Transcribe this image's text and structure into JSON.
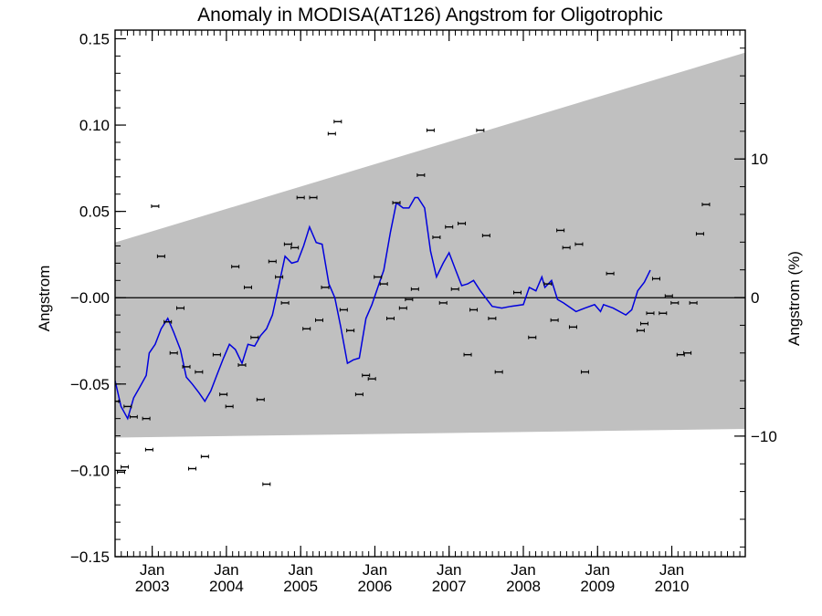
{
  "chart_data": {
    "type": "line",
    "title": "Anomaly in MODISA(AT126) Angstrom for Oligotrophic",
    "xlabel": "",
    "ylabel": "Angstrom",
    "y2label": "Angstrom (%)",
    "xlim": [
      2002.5,
      2010.99
    ],
    "ylim": [
      -0.15,
      0.155
    ],
    "y2lim": [
      -18.7,
      19.3
    ],
    "x_ticks": [
      {
        "month": "Jan",
        "year": "2003",
        "x": 2003.0
      },
      {
        "month": "Jan",
        "year": "2004",
        "x": 2004.0
      },
      {
        "month": "Jan",
        "year": "2005",
        "x": 2005.0
      },
      {
        "month": "Jan",
        "year": "2006",
        "x": 2006.0
      },
      {
        "month": "Jan",
        "year": "2007",
        "x": 2007.0
      },
      {
        "month": "Jan",
        "year": "2008",
        "x": 2008.0
      },
      {
        "month": "Jan",
        "year": "2009",
        "x": 2009.0
      },
      {
        "month": "Jan",
        "year": "2010",
        "x": 2010.0
      }
    ],
    "y_ticks": [
      {
        "label": "0.15",
        "y": 0.15
      },
      {
        "label": "0.10",
        "y": 0.1
      },
      {
        "label": "0.05",
        "y": 0.05
      },
      {
        "label": "−0.00",
        "y": 0.0
      },
      {
        "label": "−0.05",
        "y": -0.05
      },
      {
        "label": "−0.10",
        "y": -0.1
      },
      {
        "label": "−0.15",
        "y": -0.15
      }
    ],
    "y2_ticks": [
      {
        "label": "10",
        "y": 10
      },
      {
        "label": "0",
        "y": 0
      },
      {
        "label": "−10",
        "y": -10
      }
    ],
    "envelope": {
      "upper": [
        [
          2002.5,
          0.032
        ],
        [
          2010.99,
          0.142
        ]
      ],
      "lower": [
        [
          2002.5,
          -0.081
        ],
        [
          2010.99,
          -0.076
        ]
      ],
      "color": "#c0c0c0"
    },
    "zero_line": 0,
    "series": [
      {
        "kind": "scatter-errorbar",
        "color": "#000000",
        "points": [
          [
            2002.5,
            -0.06
          ],
          [
            2002.58,
            -0.101
          ],
          [
            2002.63,
            -0.098
          ],
          [
            2002.67,
            -0.063
          ],
          [
            2002.75,
            -0.069
          ],
          [
            2002.92,
            -0.07
          ],
          [
            2002.96,
            -0.088
          ],
          [
            2003.04,
            0.053
          ],
          [
            2003.12,
            0.024
          ],
          [
            2003.21,
            -0.014
          ],
          [
            2003.29,
            -0.032
          ],
          [
            2003.38,
            -0.006
          ],
          [
            2003.46,
            -0.04
          ],
          [
            2003.54,
            -0.099
          ],
          [
            2003.63,
            -0.043
          ],
          [
            2003.71,
            -0.092
          ],
          [
            2003.87,
            -0.033
          ],
          [
            2003.96,
            -0.056
          ],
          [
            2004.04,
            -0.063
          ],
          [
            2004.12,
            0.018
          ],
          [
            2004.21,
            -0.039
          ],
          [
            2004.29,
            0.006
          ],
          [
            2004.38,
            -0.023
          ],
          [
            2004.46,
            -0.059
          ],
          [
            2004.54,
            -0.108
          ],
          [
            2004.62,
            0.021
          ],
          [
            2004.71,
            0.012
          ],
          [
            2004.79,
            -0.003
          ],
          [
            2004.83,
            0.031
          ],
          [
            2004.92,
            0.029
          ],
          [
            2005.0,
            0.058
          ],
          [
            2005.08,
            -0.018
          ],
          [
            2005.17,
            0.058
          ],
          [
            2005.25,
            -0.013
          ],
          [
            2005.33,
            0.006
          ],
          [
            2005.42,
            0.095
          ],
          [
            2005.5,
            0.102
          ],
          [
            2005.58,
            -0.007
          ],
          [
            2005.67,
            -0.019
          ],
          [
            2005.79,
            -0.056
          ],
          [
            2005.88,
            -0.045
          ],
          [
            2005.96,
            -0.047
          ],
          [
            2006.04,
            0.012
          ],
          [
            2006.12,
            0.008
          ],
          [
            2006.21,
            -0.012
          ],
          [
            2006.29,
            0.055
          ],
          [
            2006.38,
            -0.006
          ],
          [
            2006.46,
            -0.001
          ],
          [
            2006.54,
            0.005
          ],
          [
            2006.62,
            0.071
          ],
          [
            2006.75,
            0.097
          ],
          [
            2006.83,
            0.035
          ],
          [
            2006.92,
            -0.003
          ],
          [
            2007.0,
            0.041
          ],
          [
            2007.08,
            0.005
          ],
          [
            2007.17,
            0.043
          ],
          [
            2007.25,
            -0.033
          ],
          [
            2007.33,
            -0.007
          ],
          [
            2007.42,
            0.097
          ],
          [
            2007.5,
            0.036
          ],
          [
            2007.58,
            -0.012
          ],
          [
            2007.67,
            -0.043
          ],
          [
            2007.92,
            0.003
          ],
          [
            2008.12,
            -0.023
          ],
          [
            2008.33,
            0.008
          ],
          [
            2008.42,
            -0.013
          ],
          [
            2008.5,
            0.039
          ],
          [
            2008.58,
            0.029
          ],
          [
            2008.67,
            -0.017
          ],
          [
            2008.75,
            0.031
          ],
          [
            2008.83,
            -0.043
          ],
          [
            2009.17,
            0.014
          ],
          [
            2009.58,
            -0.019
          ],
          [
            2009.63,
            -0.015
          ],
          [
            2009.71,
            -0.009
          ],
          [
            2009.79,
            0.011
          ],
          [
            2009.88,
            -0.009
          ],
          [
            2009.96,
            0.001
          ],
          [
            2010.04,
            -0.003
          ],
          [
            2010.12,
            -0.033
          ],
          [
            2010.21,
            -0.032
          ],
          [
            2010.29,
            -0.003
          ],
          [
            2010.38,
            0.037
          ],
          [
            2010.46,
            0.054
          ]
        ]
      },
      {
        "kind": "line",
        "color": "#0000dd",
        "points": [
          [
            2002.5,
            -0.048
          ],
          [
            2002.58,
            -0.063
          ],
          [
            2002.67,
            -0.07
          ],
          [
            2002.75,
            -0.058
          ],
          [
            2002.83,
            -0.052
          ],
          [
            2002.92,
            -0.045
          ],
          [
            2002.96,
            -0.032
          ],
          [
            2003.04,
            -0.027
          ],
          [
            2003.12,
            -0.018
          ],
          [
            2003.21,
            -0.012
          ],
          [
            2003.29,
            -0.02
          ],
          [
            2003.38,
            -0.03
          ],
          [
            2003.46,
            -0.046
          ],
          [
            2003.54,
            -0.05
          ],
          [
            2003.63,
            -0.055
          ],
          [
            2003.71,
            -0.06
          ],
          [
            2003.79,
            -0.054
          ],
          [
            2003.87,
            -0.045
          ],
          [
            2003.96,
            -0.035
          ],
          [
            2004.04,
            -0.027
          ],
          [
            2004.12,
            -0.03
          ],
          [
            2004.21,
            -0.038
          ],
          [
            2004.29,
            -0.027
          ],
          [
            2004.38,
            -0.028
          ],
          [
            2004.46,
            -0.022
          ],
          [
            2004.54,
            -0.018
          ],
          [
            2004.62,
            -0.01
          ],
          [
            2004.71,
            0.008
          ],
          [
            2004.79,
            0.024
          ],
          [
            2004.88,
            0.02
          ],
          [
            2004.96,
            0.021
          ],
          [
            2005.04,
            0.03
          ],
          [
            2005.12,
            0.041
          ],
          [
            2005.21,
            0.032
          ],
          [
            2005.29,
            0.031
          ],
          [
            2005.38,
            0.008
          ],
          [
            2005.46,
            0.0
          ],
          [
            2005.54,
            -0.017
          ],
          [
            2005.63,
            -0.038
          ],
          [
            2005.71,
            -0.036
          ],
          [
            2005.79,
            -0.035
          ],
          [
            2005.88,
            -0.012
          ],
          [
            2005.96,
            -0.004
          ],
          [
            2006.04,
            0.006
          ],
          [
            2006.12,
            0.016
          ],
          [
            2006.21,
            0.038
          ],
          [
            2006.29,
            0.055
          ],
          [
            2006.38,
            0.052
          ],
          [
            2006.46,
            0.052
          ],
          [
            2006.54,
            0.058
          ],
          [
            2006.58,
            0.058
          ],
          [
            2006.67,
            0.052
          ],
          [
            2006.75,
            0.027
          ],
          [
            2006.83,
            0.012
          ],
          [
            2006.92,
            0.02
          ],
          [
            2007.0,
            0.026
          ],
          [
            2007.08,
            0.017
          ],
          [
            2007.17,
            0.007
          ],
          [
            2007.25,
            0.008
          ],
          [
            2007.33,
            0.01
          ],
          [
            2007.42,
            0.004
          ],
          [
            2007.58,
            -0.005
          ],
          [
            2007.71,
            -0.006
          ],
          [
            2007.83,
            -0.005
          ],
          [
            2008.0,
            -0.004
          ],
          [
            2008.08,
            0.006
          ],
          [
            2008.17,
            0.004
          ],
          [
            2008.25,
            0.012
          ],
          [
            2008.29,
            0.006
          ],
          [
            2008.38,
            0.01
          ],
          [
            2008.46,
            -0.001
          ],
          [
            2008.54,
            -0.003
          ],
          [
            2008.71,
            -0.008
          ],
          [
            2008.83,
            -0.006
          ],
          [
            2008.96,
            -0.004
          ],
          [
            2009.04,
            -0.008
          ],
          [
            2009.08,
            -0.004
          ],
          [
            2009.21,
            -0.006
          ],
          [
            2009.38,
            -0.01
          ],
          [
            2009.46,
            -0.007
          ],
          [
            2009.54,
            0.004
          ],
          [
            2009.63,
            0.009
          ],
          [
            2009.71,
            0.016
          ]
        ]
      }
    ]
  }
}
